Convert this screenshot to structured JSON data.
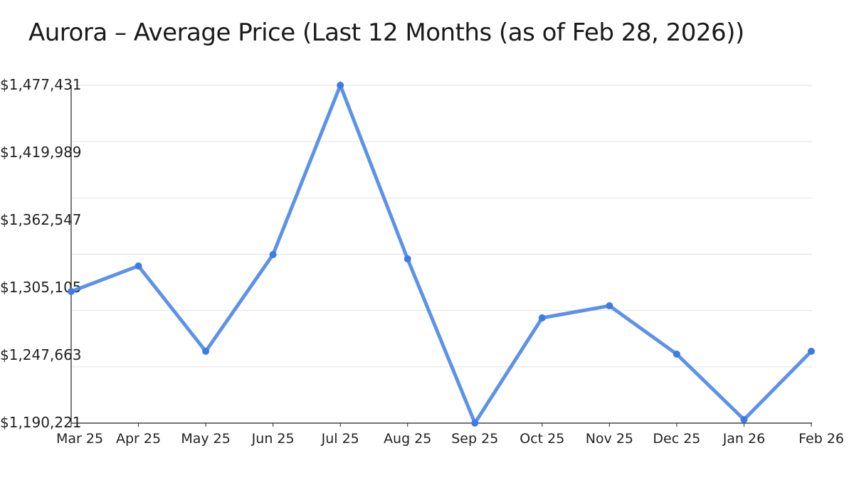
{
  "chart_data": {
    "type": "line",
    "title": "Aurora – Average Price (Last 12 Months (as of Feb 28, 2026))",
    "xlabel": "",
    "ylabel": "",
    "categories": [
      "Mar 25",
      "Apr 25",
      "May 25",
      "Jun 25",
      "Jul 25",
      "Aug 25",
      "Sep 25",
      "Oct 25",
      "Nov 25",
      "Dec 25",
      "Jan 26",
      "Feb 26"
    ],
    "series": [
      {
        "name": "Average Price",
        "color": "#4a86e8",
        "values": [
          1302082,
          1323850,
          1251292,
          1333524,
          1477431,
          1329896,
          1190221,
          1279709,
          1289988,
          1248872,
          1193244,
          1251292
        ]
      }
    ],
    "yticks": [
      "$1,477,431",
      "$1,419,989",
      "$1,362,547",
      "$1,305,105",
      "$1,247,663",
      "$1,190,221"
    ],
    "ytick_values": [
      1477431,
      1419989,
      1362547,
      1305105,
      1247663,
      1190221
    ],
    "ylim": [
      1190221,
      1477431
    ],
    "grid": true,
    "legend": "none"
  },
  "header": {
    "title": "Aurora – Average Price (Last 12 Months (as of Feb 28, 2026))"
  },
  "colors": {
    "line": "#4a86e8",
    "grid": "#e3e3e3",
    "axis": "#222222"
  }
}
